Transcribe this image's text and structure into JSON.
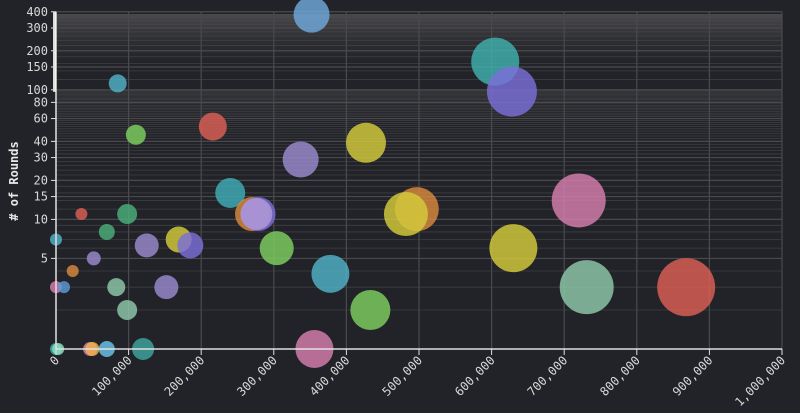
{
  "chart_data": {
    "type": "scatter",
    "subtype": "bubble",
    "title": "",
    "xlabel": "",
    "ylabel": "# of Rounds",
    "xscale": "linear",
    "yscale": "log",
    "xlim": [
      0,
      1000000
    ],
    "ylim": [
      1,
      400
    ],
    "x_ticks": [
      0,
      100000,
      200000,
      300000,
      400000,
      500000,
      600000,
      700000,
      800000,
      900000,
      1000000
    ],
    "x_tick_labels": [
      "0",
      "100,000",
      "200,000",
      "300,000",
      "400,000",
      "500,000",
      "600,000",
      "700,000",
      "800,000",
      "900,000",
      "1,000,000"
    ],
    "y_ticks": [
      5,
      10,
      15,
      20,
      30,
      40,
      60,
      80,
      100,
      150,
      200,
      300,
      400
    ],
    "y_tick_labels": [
      "5",
      "10",
      "15",
      "20",
      "30",
      "40",
      "60",
      "80",
      "100",
      "150",
      "200",
      "300",
      "400"
    ],
    "grid": true,
    "legend": "none",
    "points": [
      {
        "x": 352000,
        "y": 380,
        "r": 18,
        "color": "#6fa8dc"
      },
      {
        "x": 605000,
        "y": 165,
        "r": 24,
        "color": "#3fb1ae"
      },
      {
        "x": 628000,
        "y": 97,
        "r": 25,
        "color": "#7b6fd9"
      },
      {
        "x": 85000,
        "y": 112,
        "r": 9,
        "color": "#4fb2c8"
      },
      {
        "x": 110000,
        "y": 45,
        "r": 10,
        "color": "#7ed05f"
      },
      {
        "x": 216000,
        "y": 52,
        "r": 14,
        "color": "#dc5f55"
      },
      {
        "x": 427000,
        "y": 39,
        "r": 20,
        "color": "#d4cc3a"
      },
      {
        "x": 337000,
        "y": 29,
        "r": 18,
        "color": "#9b8bd0"
      },
      {
        "x": 240000,
        "y": 16,
        "r": 15,
        "color": "#3fadb8"
      },
      {
        "x": 720000,
        "y": 14,
        "r": 27,
        "color": "#d77fb0"
      },
      {
        "x": 497000,
        "y": 12,
        "r": 22,
        "color": "#d98a3c"
      },
      {
        "x": 482000,
        "y": 11,
        "r": 22,
        "color": "#d4cc3a"
      },
      {
        "x": 270000,
        "y": 11,
        "r": 17,
        "color": "#d98a3c"
      },
      {
        "x": 279000,
        "y": 11,
        "r": 17,
        "color": "#7b6fd9"
      },
      {
        "x": 276000,
        "y": 11,
        "r": 16,
        "color": "#b09ad8"
      },
      {
        "x": 35000,
        "y": 11,
        "r": 6,
        "color": "#dc5f55"
      },
      {
        "x": 98000,
        "y": 11,
        "r": 10,
        "color": "#4bb07a"
      },
      {
        "x": 70000,
        "y": 8,
        "r": 8,
        "color": "#4bb07a"
      },
      {
        "x": 0,
        "y": 7,
        "r": 6,
        "color": "#4fb2c8"
      },
      {
        "x": 169000,
        "y": 7,
        "r": 13,
        "color": "#d4cc3a"
      },
      {
        "x": 185000,
        "y": 6.3,
        "r": 13,
        "color": "#7b6fd9"
      },
      {
        "x": 125000,
        "y": 6.3,
        "r": 12,
        "color": "#9b8bd0"
      },
      {
        "x": 304000,
        "y": 6,
        "r": 17,
        "color": "#7ed05f"
      },
      {
        "x": 630000,
        "y": 6,
        "r": 24,
        "color": "#d4cc3a"
      },
      {
        "x": 52000,
        "y": 5,
        "r": 7,
        "color": "#9b8bd0"
      },
      {
        "x": 378000,
        "y": 3.8,
        "r": 19,
        "color": "#4fb2c8"
      },
      {
        "x": 23000,
        "y": 4,
        "r": 6,
        "color": "#d98a3c"
      },
      {
        "x": 0,
        "y": 3,
        "r": 6,
        "color": "#d77fb0"
      },
      {
        "x": 11000,
        "y": 3,
        "r": 6,
        "color": "#5b9bd5"
      },
      {
        "x": 83000,
        "y": 3,
        "r": 9,
        "color": "#8fc9ab"
      },
      {
        "x": 152000,
        "y": 3,
        "r": 12,
        "color": "#9b8bd0"
      },
      {
        "x": 731000,
        "y": 3,
        "r": 27,
        "color": "#8fc9ab"
      },
      {
        "x": 868000,
        "y": 3,
        "r": 29,
        "color": "#dc5f55"
      },
      {
        "x": 98000,
        "y": 2,
        "r": 10,
        "color": "#8fc9ab"
      },
      {
        "x": 433000,
        "y": 2,
        "r": 20,
        "color": "#7ed05f"
      },
      {
        "x": 0,
        "y": 1,
        "r": 6,
        "color": "#3fb1ae"
      },
      {
        "x": 3000,
        "y": 1,
        "r": 6,
        "color": "#8fe0c0"
      },
      {
        "x": 47000,
        "y": 1,
        "r": 7,
        "color": "#d77fb0"
      },
      {
        "x": 50000,
        "y": 1,
        "r": 7,
        "color": "#f0b44a"
      },
      {
        "x": 70000,
        "y": 1,
        "r": 8,
        "color": "#6cc4ea"
      },
      {
        "x": 120000,
        "y": 1,
        "r": 11,
        "color": "#3fa6a0"
      },
      {
        "x": 356000,
        "y": 1,
        "r": 19,
        "color": "#d77fb0"
      }
    ]
  },
  "style": {
    "background": "#222328",
    "plot_background": "#222328",
    "gridline_color": "#4a4a4e",
    "axis_color": "#e0e0e0",
    "bubble_opacity": 0.82
  }
}
